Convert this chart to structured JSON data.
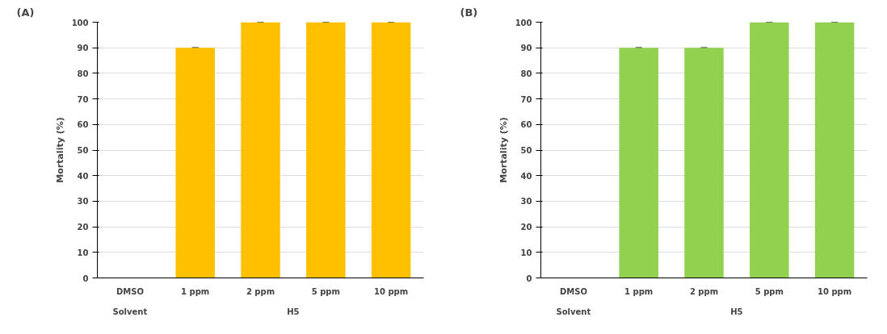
{
  "chart_data": [
    {
      "type": "bar",
      "title": "(A)",
      "ylabel": "Mortality (%)",
      "categories": [
        "DMSO",
        "1 ppm",
        "2 ppm",
        "5 ppm",
        "10 ppm"
      ],
      "values": [
        0,
        90,
        100,
        100,
        100
      ],
      "errors": [
        null,
        0,
        0,
        0,
        0
      ],
      "color": "#ffc000",
      "ylim": [
        0,
        100
      ],
      "yticks": [
        0,
        10,
        20,
        30,
        40,
        50,
        60,
        70,
        80,
        90,
        100
      ],
      "grid": "y",
      "annotations": [
        "Solvent",
        "H5"
      ]
    },
    {
      "type": "bar",
      "title": "(B)",
      "ylabel": "Mortality (%)",
      "categories": [
        "DMSO",
        "1 ppm",
        "2 ppm",
        "5 ppm",
        "10 ppm"
      ],
      "values": [
        0,
        90,
        90,
        100,
        100
      ],
      "errors": [
        null,
        0,
        0,
        0,
        0
      ],
      "color": "#92d050",
      "ylim": [
        0,
        100
      ],
      "yticks": [
        0,
        10,
        20,
        30,
        40,
        50,
        60,
        70,
        80,
        90,
        100
      ],
      "grid": "y",
      "annotations": [
        "Solvent",
        "H5"
      ]
    }
  ]
}
